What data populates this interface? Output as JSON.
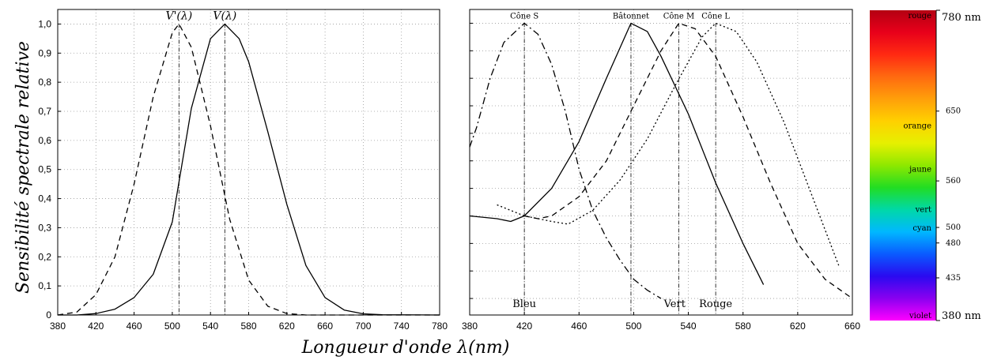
{
  "figure": {
    "ylabel": "Sensibilité spectrale relative",
    "xlabel": "Longueur d'onde λ(nm)"
  },
  "chart_data": [
    {
      "type": "line",
      "xlim": [
        380,
        780
      ],
      "ylim": [
        0,
        1.05
      ],
      "grid": true,
      "x_ticks": [
        380,
        420,
        460,
        500,
        540,
        580,
        620,
        660,
        700,
        740,
        780
      ],
      "y_ticks": [
        0,
        0.1,
        0.2,
        0.3,
        0.4,
        0.5,
        0.6,
        0.7,
        0.8,
        0.9,
        1.0
      ],
      "y_tick_labels": [
        "0",
        "0,1",
        "0,2",
        "0,3",
        "0,4",
        "0,5",
        "0,6",
        "0,7",
        "0,8",
        "0,9",
        "1,0"
      ],
      "series": [
        {
          "name": "V'(λ)",
          "style": "dashed",
          "peak_x": 507,
          "points": [
            [
              380,
              0.0
            ],
            [
              400,
              0.01
            ],
            [
              420,
              0.07
            ],
            [
              440,
              0.2
            ],
            [
              460,
              0.45
            ],
            [
              480,
              0.75
            ],
            [
              500,
              0.97
            ],
            [
              507,
              1.0
            ],
            [
              520,
              0.92
            ],
            [
              540,
              0.65
            ],
            [
              560,
              0.33
            ],
            [
              580,
              0.12
            ],
            [
              600,
              0.03
            ],
            [
              620,
              0.005
            ],
            [
              640,
              0.0
            ],
            [
              780,
              0.0
            ]
          ]
        },
        {
          "name": "V(λ)",
          "style": "solid",
          "peak_x": 555,
          "points": [
            [
              380,
              0.0
            ],
            [
              400,
              0.0
            ],
            [
              420,
              0.005
            ],
            [
              440,
              0.02
            ],
            [
              460,
              0.06
            ],
            [
              480,
              0.14
            ],
            [
              500,
              0.32
            ],
            [
              520,
              0.71
            ],
            [
              540,
              0.95
            ],
            [
              555,
              1.0
            ],
            [
              570,
              0.95
            ],
            [
              580,
              0.87
            ],
            [
              600,
              0.63
            ],
            [
              620,
              0.38
            ],
            [
              640,
              0.17
            ],
            [
              660,
              0.06
            ],
            [
              680,
              0.017
            ],
            [
              700,
              0.004
            ],
            [
              720,
              0.001
            ],
            [
              780,
              0.0
            ]
          ]
        }
      ]
    },
    {
      "type": "line",
      "xlim": [
        380,
        660
      ],
      "ylim": [
        -0.06,
        1.05
      ],
      "grid": true,
      "x_ticks": [
        380,
        420,
        460,
        500,
        540,
        580,
        620,
        660
      ],
      "series": [
        {
          "name": "Cône S",
          "style": "dash-dot",
          "peak_x": 420,
          "points": [
            [
              380,
              0.55
            ],
            [
              385,
              0.62
            ],
            [
              395,
              0.8
            ],
            [
              405,
              0.93
            ],
            [
              420,
              1.0
            ],
            [
              430,
              0.96
            ],
            [
              440,
              0.85
            ],
            [
              450,
              0.68
            ],
            [
              460,
              0.47
            ],
            [
              470,
              0.32
            ],
            [
              480,
              0.22
            ],
            [
              490,
              0.14
            ],
            [
              500,
              0.07
            ],
            [
              510,
              0.03
            ],
            [
              520,
              0.0
            ]
          ]
        },
        {
          "name": "Bâtonnet",
          "style": "solid",
          "peak_x": 498,
          "points": [
            [
              380,
              0.3
            ],
            [
              400,
              0.29
            ],
            [
              410,
              0.28
            ],
            [
              420,
              0.3
            ],
            [
              440,
              0.4
            ],
            [
              460,
              0.57
            ],
            [
              480,
              0.8
            ],
            [
              498,
              1.0
            ],
            [
              510,
              0.97
            ],
            [
              520,
              0.88
            ],
            [
              540,
              0.67
            ],
            [
              560,
              0.42
            ],
            [
              580,
              0.2
            ],
            [
              595,
              0.05
            ]
          ]
        },
        {
          "name": "Cône M",
          "style": "dashed",
          "peak_x": 533,
          "points": [
            [
              420,
              0.3
            ],
            [
              430,
              0.29
            ],
            [
              440,
              0.3
            ],
            [
              460,
              0.37
            ],
            [
              480,
              0.5
            ],
            [
              500,
              0.7
            ],
            [
              520,
              0.9
            ],
            [
              533,
              1.0
            ],
            [
              545,
              0.98
            ],
            [
              560,
              0.88
            ],
            [
              580,
              0.66
            ],
            [
              600,
              0.42
            ],
            [
              620,
              0.2
            ],
            [
              640,
              0.07
            ],
            [
              660,
              0.0
            ]
          ]
        },
        {
          "name": "Cône L",
          "style": "dotted",
          "peak_x": 560,
          "points": [
            [
              400,
              0.34
            ],
            [
              420,
              0.3
            ],
            [
              440,
              0.28
            ],
            [
              452,
              0.27
            ],
            [
              470,
              0.32
            ],
            [
              490,
              0.43
            ],
            [
              510,
              0.58
            ],
            [
              530,
              0.77
            ],
            [
              550,
              0.95
            ],
            [
              560,
              1.0
            ],
            [
              575,
              0.97
            ],
            [
              590,
              0.86
            ],
            [
              610,
              0.64
            ],
            [
              630,
              0.38
            ],
            [
              650,
              0.12
            ]
          ]
        }
      ],
      "bottom_labels": [
        {
          "text": "Bleu",
          "x": 420
        },
        {
          "text": "Vert",
          "x": 530
        },
        {
          "text": "Rouge",
          "x": 560
        }
      ]
    }
  ],
  "spectrum": {
    "top_label": "780 nm",
    "bottom_label": "380 nm",
    "colors": [
      "#b40012",
      "#e8001a",
      "#ff2a12",
      "#ff6a10",
      "#ff9f0a",
      "#ffd000",
      "#e6f000",
      "#8ee800",
      "#22dd22",
      "#00d8a8",
      "#00b8ff",
      "#0a5aff",
      "#2a0af0",
      "#8a00f0",
      "#ff00ff"
    ],
    "color_names": [
      {
        "name": "rouge",
        "pos": 0.0
      },
      {
        "name": "orange",
        "pos": 0.37
      },
      {
        "name": "jaune",
        "pos": 0.51
      },
      {
        "name": "vert",
        "pos": 0.64
      },
      {
        "name": "cyan",
        "pos": 0.7
      },
      {
        "name": "violet",
        "pos": 1.0
      }
    ],
    "ticks": [
      {
        "label": "650",
        "nm": 650
      },
      {
        "label": "560",
        "nm": 560
      },
      {
        "label": "500",
        "nm": 500
      },
      {
        "label": "480",
        "nm": 480
      },
      {
        "label": "435",
        "nm": 435
      }
    ]
  }
}
